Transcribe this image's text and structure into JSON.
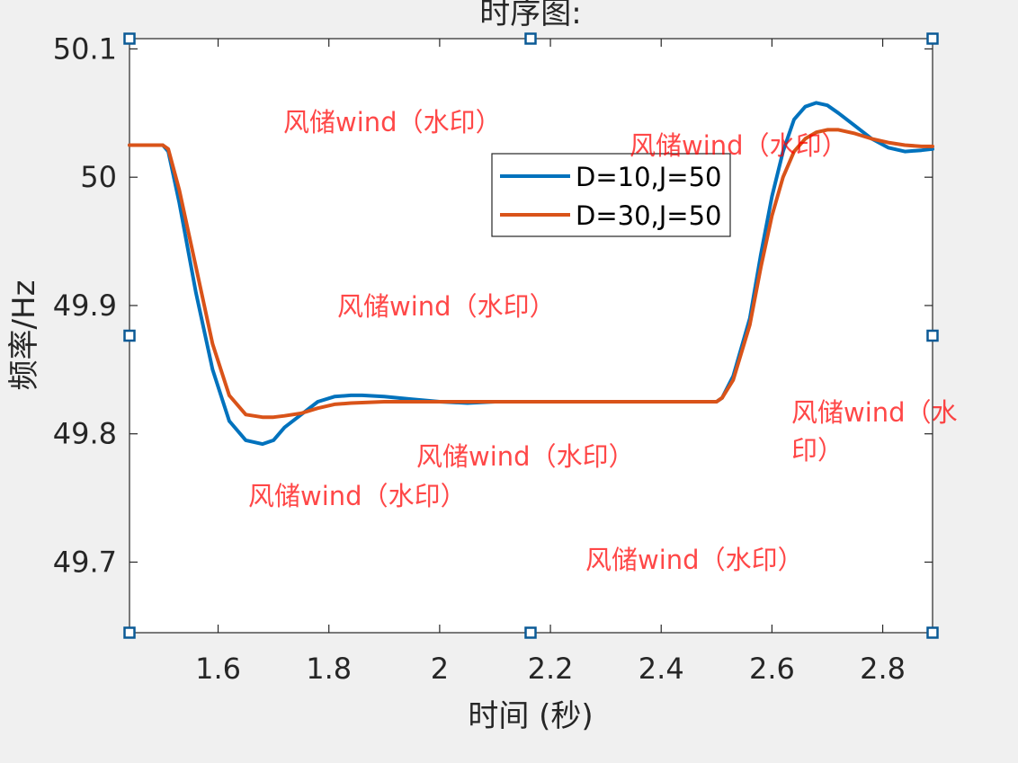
{
  "chart_data": {
    "type": "line",
    "title": "时序图:",
    "xlabel": "时间 (秒)",
    "ylabel": "频率/Hz",
    "xlim": [
      1.44,
      2.89
    ],
    "ylim": [
      49.645,
      50.108
    ],
    "xticks": [
      1.6,
      1.8,
      2,
      2.2,
      2.4,
      2.6,
      2.8
    ],
    "xtick_labels": [
      "1.6",
      "1.8",
      "2",
      "2.2",
      "2.4",
      "2.6",
      "2.8"
    ],
    "yticks": [
      49.7,
      49.8,
      49.9,
      50,
      50.1
    ],
    "ytick_labels": [
      "49.7",
      "49.8",
      "49.9",
      "50",
      "50.1"
    ],
    "grid": false,
    "legend_position": "top-center",
    "series": [
      {
        "name": "D=10,J=50",
        "color": "#0072bd",
        "x": [
          1.44,
          1.5,
          1.51,
          1.53,
          1.56,
          1.59,
          1.62,
          1.65,
          1.68,
          1.7,
          1.72,
          1.75,
          1.78,
          1.81,
          1.84,
          1.86,
          1.9,
          1.95,
          2.0,
          2.05,
          2.1,
          2.2,
          2.3,
          2.4,
          2.5,
          2.51,
          2.53,
          2.56,
          2.58,
          2.6,
          2.62,
          2.64,
          2.66,
          2.68,
          2.7,
          2.72,
          2.75,
          2.78,
          2.81,
          2.84,
          2.87,
          2.89
        ],
        "y": [
          50.025,
          50.025,
          50.02,
          49.98,
          49.91,
          49.85,
          49.81,
          49.795,
          49.792,
          49.795,
          49.805,
          49.815,
          49.825,
          49.829,
          49.83,
          49.83,
          49.829,
          49.827,
          49.825,
          49.824,
          49.825,
          49.825,
          49.825,
          49.825,
          49.825,
          49.828,
          49.845,
          49.89,
          49.94,
          49.985,
          50.02,
          50.045,
          50.055,
          50.058,
          50.056,
          50.05,
          50.04,
          50.03,
          50.023,
          50.02,
          50.021,
          50.022
        ]
      },
      {
        "name": "D=30,J=50",
        "color": "#d95319",
        "x": [
          1.44,
          1.5,
          1.51,
          1.53,
          1.56,
          1.59,
          1.62,
          1.65,
          1.68,
          1.7,
          1.72,
          1.75,
          1.78,
          1.81,
          1.84,
          1.9,
          1.95,
          2.0,
          2.1,
          2.2,
          2.3,
          2.4,
          2.5,
          2.51,
          2.53,
          2.56,
          2.58,
          2.6,
          2.62,
          2.64,
          2.66,
          2.68,
          2.7,
          2.72,
          2.75,
          2.78,
          2.81,
          2.84,
          2.87,
          2.89
        ],
        "y": [
          50.025,
          50.025,
          50.022,
          49.99,
          49.93,
          49.87,
          49.83,
          49.815,
          49.813,
          49.813,
          49.814,
          49.816,
          49.82,
          49.823,
          49.824,
          49.825,
          49.825,
          49.825,
          49.825,
          49.825,
          49.825,
          49.825,
          49.825,
          49.828,
          49.842,
          49.885,
          49.93,
          49.97,
          50.0,
          50.02,
          50.03,
          50.035,
          50.037,
          50.037,
          50.034,
          50.03,
          50.027,
          50.025,
          50.024,
          50.024
        ]
      }
    ]
  },
  "watermarks": [
    "风储wind（水印）",
    "风储wind（水印）",
    "风储wind（水印）",
    "风储wind（水印）",
    "风储wind（水印）",
    "风储wind（水印）",
    "风储wind（水",
    "印）"
  ]
}
